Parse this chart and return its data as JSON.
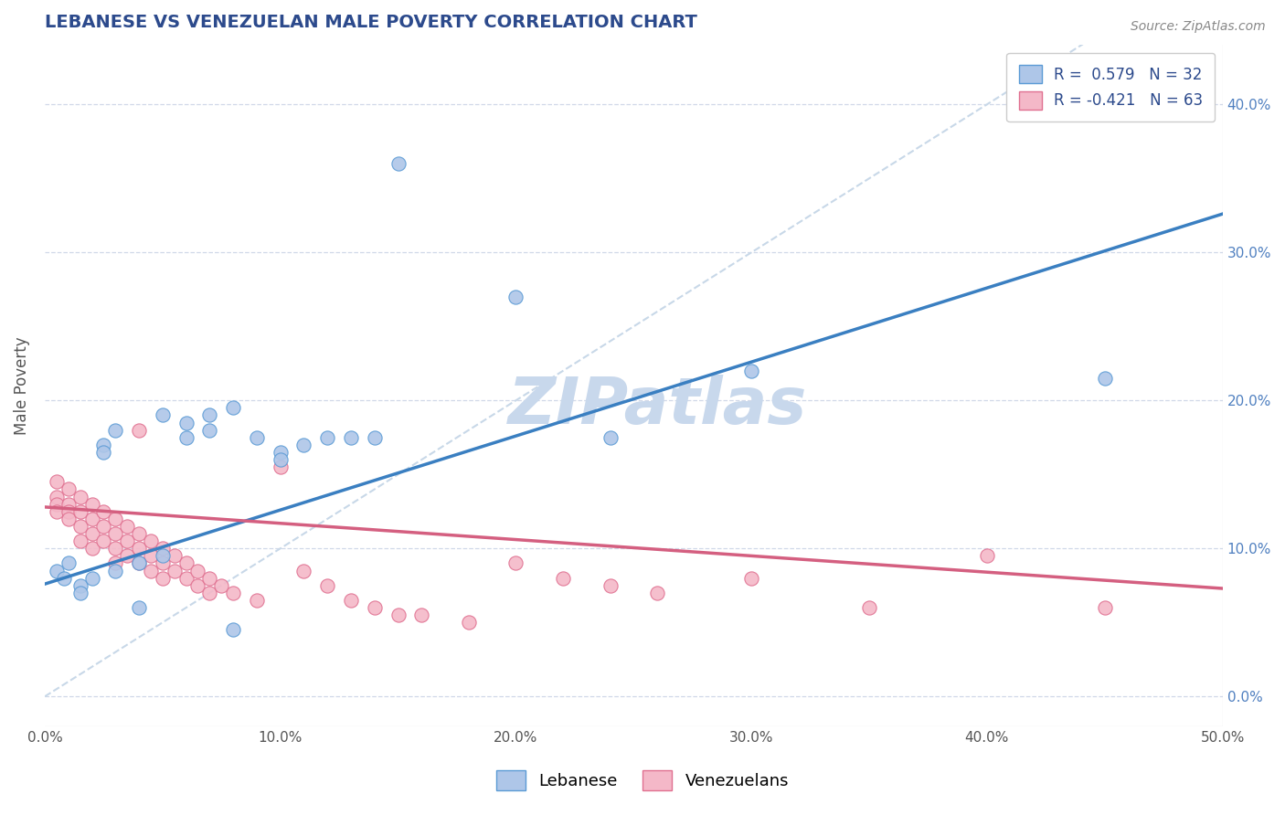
{
  "title": "LEBANESE VS VENEZUELAN MALE POVERTY CORRELATION CHART",
  "source": "Source: ZipAtlas.com",
  "ylabel": "Male Poverty",
  "xlim": [
    0,
    0.5
  ],
  "ylim": [
    -0.02,
    0.44
  ],
  "xticks": [
    0.0,
    0.1,
    0.2,
    0.3,
    0.4,
    0.5
  ],
  "yticks": [
    0.0,
    0.1,
    0.2,
    0.3,
    0.4
  ],
  "ytick_labels_right": [
    "0.0%",
    "10.0%",
    "20.0%",
    "30.0%",
    "40.0%"
  ],
  "r_lebanese": 0.579,
  "n_lebanese": 32,
  "r_venezuelan": -0.421,
  "n_venezuelan": 63,
  "blue_scatter_color": "#aec6e8",
  "blue_edge_color": "#5b9bd5",
  "pink_scatter_color": "#f4b8c8",
  "pink_edge_color": "#e07090",
  "blue_line_color": "#3a7fc1",
  "pink_line_color": "#d45f80",
  "diag_line_color": "#c8d8e8",
  "grid_color": "#d0d8e8",
  "watermark_color": "#c8d8ec",
  "title_color": "#2c4a8c",
  "right_ytick_color": "#5080c0",
  "legend_text_color": "#2c4a8c",
  "background_color": "#ffffff",
  "lebanese_regression": {
    "slope": 0.5,
    "intercept": 0.076
  },
  "venezuelan_regression": {
    "slope": -0.11,
    "intercept": 0.128
  },
  "lebanese_points": [
    [
      0.005,
      0.085
    ],
    [
      0.008,
      0.08
    ],
    [
      0.01,
      0.09
    ],
    [
      0.015,
      0.075
    ],
    [
      0.015,
      0.07
    ],
    [
      0.02,
      0.08
    ],
    [
      0.025,
      0.17
    ],
    [
      0.025,
      0.165
    ],
    [
      0.03,
      0.18
    ],
    [
      0.03,
      0.085
    ],
    [
      0.04,
      0.09
    ],
    [
      0.04,
      0.06
    ],
    [
      0.05,
      0.19
    ],
    [
      0.05,
      0.095
    ],
    [
      0.06,
      0.175
    ],
    [
      0.06,
      0.185
    ],
    [
      0.07,
      0.18
    ],
    [
      0.07,
      0.19
    ],
    [
      0.08,
      0.195
    ],
    [
      0.08,
      0.045
    ],
    [
      0.09,
      0.175
    ],
    [
      0.1,
      0.165
    ],
    [
      0.1,
      0.16
    ],
    [
      0.11,
      0.17
    ],
    [
      0.12,
      0.175
    ],
    [
      0.13,
      0.175
    ],
    [
      0.14,
      0.175
    ],
    [
      0.15,
      0.36
    ],
    [
      0.2,
      0.27
    ],
    [
      0.24,
      0.175
    ],
    [
      0.3,
      0.22
    ],
    [
      0.45,
      0.215
    ]
  ],
  "venezuelan_points": [
    [
      0.005,
      0.145
    ],
    [
      0.005,
      0.135
    ],
    [
      0.005,
      0.13
    ],
    [
      0.005,
      0.125
    ],
    [
      0.01,
      0.14
    ],
    [
      0.01,
      0.13
    ],
    [
      0.01,
      0.125
    ],
    [
      0.01,
      0.12
    ],
    [
      0.015,
      0.135
    ],
    [
      0.015,
      0.125
    ],
    [
      0.015,
      0.115
    ],
    [
      0.015,
      0.105
    ],
    [
      0.02,
      0.13
    ],
    [
      0.02,
      0.12
    ],
    [
      0.02,
      0.11
    ],
    [
      0.02,
      0.1
    ],
    [
      0.025,
      0.125
    ],
    [
      0.025,
      0.115
    ],
    [
      0.025,
      0.105
    ],
    [
      0.03,
      0.12
    ],
    [
      0.03,
      0.11
    ],
    [
      0.03,
      0.1
    ],
    [
      0.03,
      0.09
    ],
    [
      0.035,
      0.115
    ],
    [
      0.035,
      0.105
    ],
    [
      0.035,
      0.095
    ],
    [
      0.04,
      0.18
    ],
    [
      0.04,
      0.11
    ],
    [
      0.04,
      0.1
    ],
    [
      0.04,
      0.09
    ],
    [
      0.045,
      0.105
    ],
    [
      0.045,
      0.095
    ],
    [
      0.045,
      0.085
    ],
    [
      0.05,
      0.1
    ],
    [
      0.05,
      0.09
    ],
    [
      0.05,
      0.08
    ],
    [
      0.055,
      0.095
    ],
    [
      0.055,
      0.085
    ],
    [
      0.06,
      0.09
    ],
    [
      0.06,
      0.08
    ],
    [
      0.065,
      0.085
    ],
    [
      0.065,
      0.075
    ],
    [
      0.07,
      0.08
    ],
    [
      0.07,
      0.07
    ],
    [
      0.075,
      0.075
    ],
    [
      0.08,
      0.07
    ],
    [
      0.09,
      0.065
    ],
    [
      0.1,
      0.155
    ],
    [
      0.11,
      0.085
    ],
    [
      0.12,
      0.075
    ],
    [
      0.13,
      0.065
    ],
    [
      0.14,
      0.06
    ],
    [
      0.15,
      0.055
    ],
    [
      0.16,
      0.055
    ],
    [
      0.18,
      0.05
    ],
    [
      0.2,
      0.09
    ],
    [
      0.22,
      0.08
    ],
    [
      0.24,
      0.075
    ],
    [
      0.26,
      0.07
    ],
    [
      0.3,
      0.08
    ],
    [
      0.35,
      0.06
    ],
    [
      0.4,
      0.095
    ],
    [
      0.45,
      0.06
    ]
  ]
}
